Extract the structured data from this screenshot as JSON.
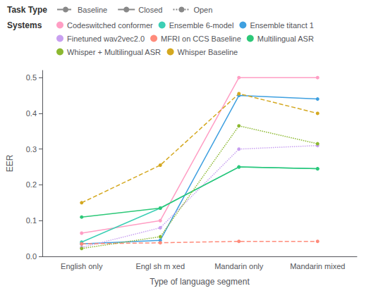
{
  "chart_data": {
    "type": "line",
    "xlabel": "Type of language segment",
    "ylabel": "EER",
    "categories": [
      "English only",
      "Engl sh m xed",
      "Mandarin only",
      "Mandarin mixed"
    ],
    "series": [
      {
        "name": "Codeswitched conformer",
        "color": "#FF9EC4",
        "line_style": "solid",
        "marker": "circle",
        "values": [
          0.065,
          0.1,
          0.5,
          0.5
        ]
      },
      {
        "name": "Ensemble 6-model",
        "color": "#3DCFB5",
        "line_style": "solid",
        "marker": "circle",
        "values": [
          0.04,
          0.135,
          0.25,
          0.245
        ]
      },
      {
        "name": "Ensemble titanct 1",
        "color": "#3FA0E0",
        "line_style": "solid",
        "marker": "circle",
        "values": [
          0.035,
          0.045,
          0.45,
          0.44
        ]
      },
      {
        "name": "Finetuned wav2vec2.0",
        "color": "#C8A0F0",
        "line_style": "dotted",
        "marker": "circle",
        "values": [
          0.025,
          0.08,
          0.3,
          0.31
        ]
      },
      {
        "name": "MFRI on CCS Baseline",
        "color": "#FF8B7B",
        "line_style": "dashed",
        "marker": "circle",
        "values": [
          0.035,
          0.038,
          0.042,
          0.042
        ]
      },
      {
        "name": "Multilingual ASR",
        "color": "#2DC878",
        "line_style": "solid",
        "marker": "circle",
        "values": [
          0.11,
          0.135,
          0.25,
          0.245
        ]
      },
      {
        "name": "Whisper + Multilingual ASR",
        "color": "#8CB830",
        "line_style": "dotted",
        "marker": "circle",
        "values": [
          0.022,
          0.055,
          0.365,
          0.315
        ]
      },
      {
        "name": "Whisper Baseline",
        "color": "#D4A820",
        "line_style": "dashed",
        "marker": "circle",
        "values": [
          0.15,
          0.255,
          0.455,
          0.4
        ]
      }
    ],
    "ylim": [
      0,
      0.52
    ],
    "yticks": [
      {
        "value": 0.0,
        "label": "0.0"
      },
      0.1,
      0.2,
      0.3,
      0.4,
      0.5
    ],
    "grid": false,
    "legend": "top",
    "task_legend": {
      "title": "Task Type",
      "color": "#888888",
      "entries": [
        {
          "name": "Baseline",
          "line_style": "dashed"
        },
        {
          "name": "Closed",
          "line_style": "solid"
        },
        {
          "name": "Open",
          "line_style": "dotted"
        }
      ]
    },
    "series_legend_title": "Systems"
  }
}
